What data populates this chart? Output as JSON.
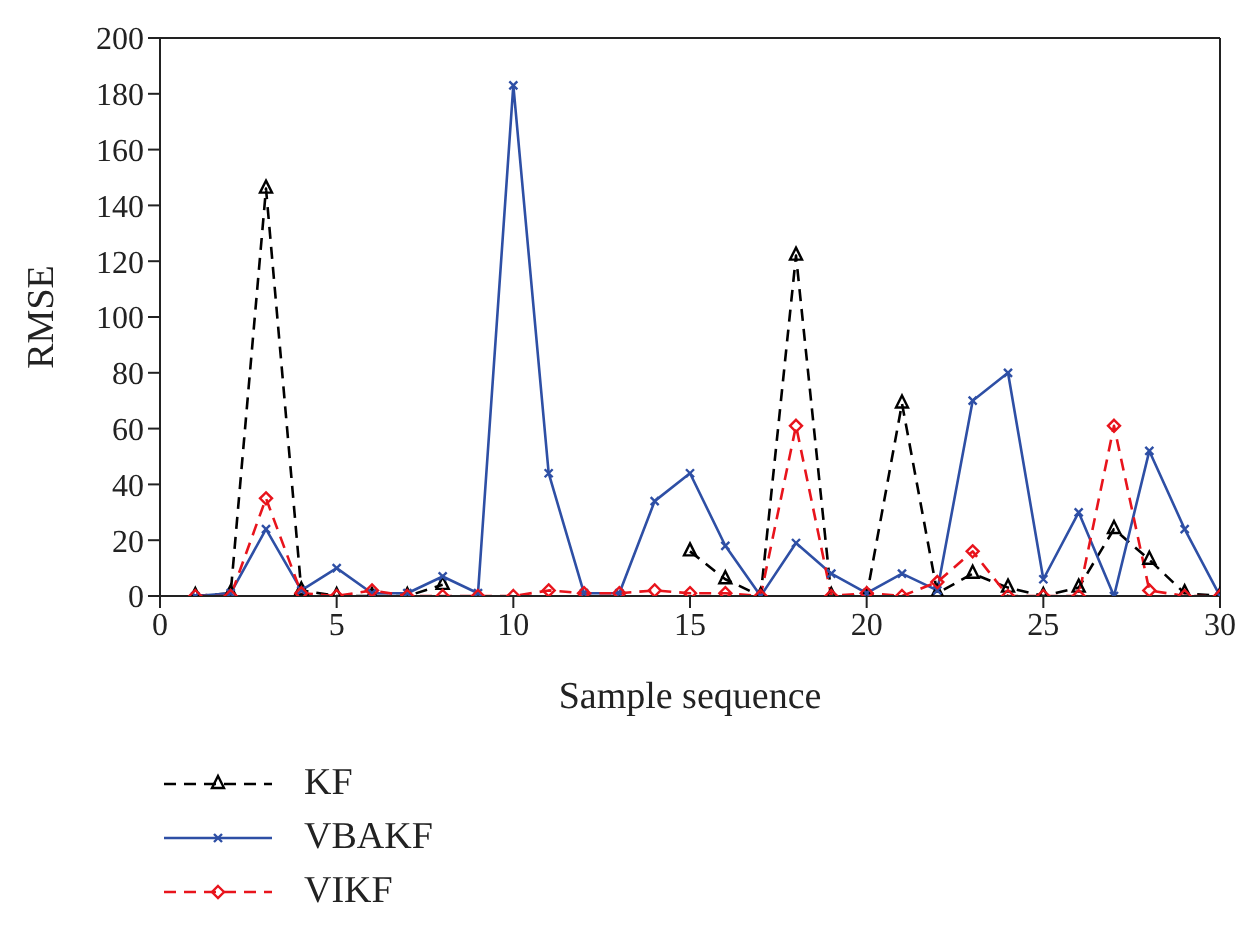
{
  "chart_data": {
    "type": "line",
    "xlabel": "Sample sequence",
    "ylabel": "RMSE",
    "x": [
      1,
      2,
      3,
      4,
      5,
      6,
      7,
      8,
      9,
      10,
      11,
      12,
      13,
      14,
      15,
      16,
      17,
      18,
      19,
      20,
      21,
      22,
      23,
      24,
      25,
      26,
      27,
      28,
      29,
      30
    ],
    "xlim": [
      0,
      30
    ],
    "xticks": [
      0,
      5,
      10,
      15,
      20,
      25,
      30
    ],
    "ylim": [
      0,
      200
    ],
    "yticks": [
      0,
      20,
      40,
      60,
      80,
      100,
      120,
      140,
      160,
      180,
      200
    ],
    "legend": "bottom left",
    "series": [
      {
        "name": "KF",
        "color": "#000000",
        "marker": "triangle",
        "line_style": "dashed",
        "values": [
          0,
          1,
          146,
          2,
          0,
          0,
          0,
          4,
          null,
          null,
          null,
          null,
          null,
          null,
          16,
          6,
          0,
          122,
          0,
          0,
          69,
          1,
          8,
          3,
          0,
          3,
          24,
          13,
          1,
          0
        ]
      },
      {
        "name": "VBAKF",
        "color": "#2e4fa5",
        "marker": "cross",
        "line_style": "solid",
        "values": [
          0,
          1,
          24,
          2,
          10,
          1,
          1,
          7,
          1,
          183,
          44,
          1,
          1,
          34,
          44,
          18,
          0,
          19,
          8,
          1,
          8,
          2,
          70,
          80,
          6,
          30,
          0,
          52,
          24,
          0
        ]
      },
      {
        "name": "VIKF",
        "color": "#e8141c",
        "marker": "diamond",
        "line_style": "dashed",
        "values": [
          0,
          0,
          35,
          1,
          0,
          2,
          0,
          0,
          0,
          0,
          2,
          1,
          1,
          2,
          1,
          1,
          0,
          61,
          0,
          1,
          0,
          5,
          16,
          0,
          0,
          0,
          61,
          2,
          0,
          0
        ]
      }
    ]
  }
}
